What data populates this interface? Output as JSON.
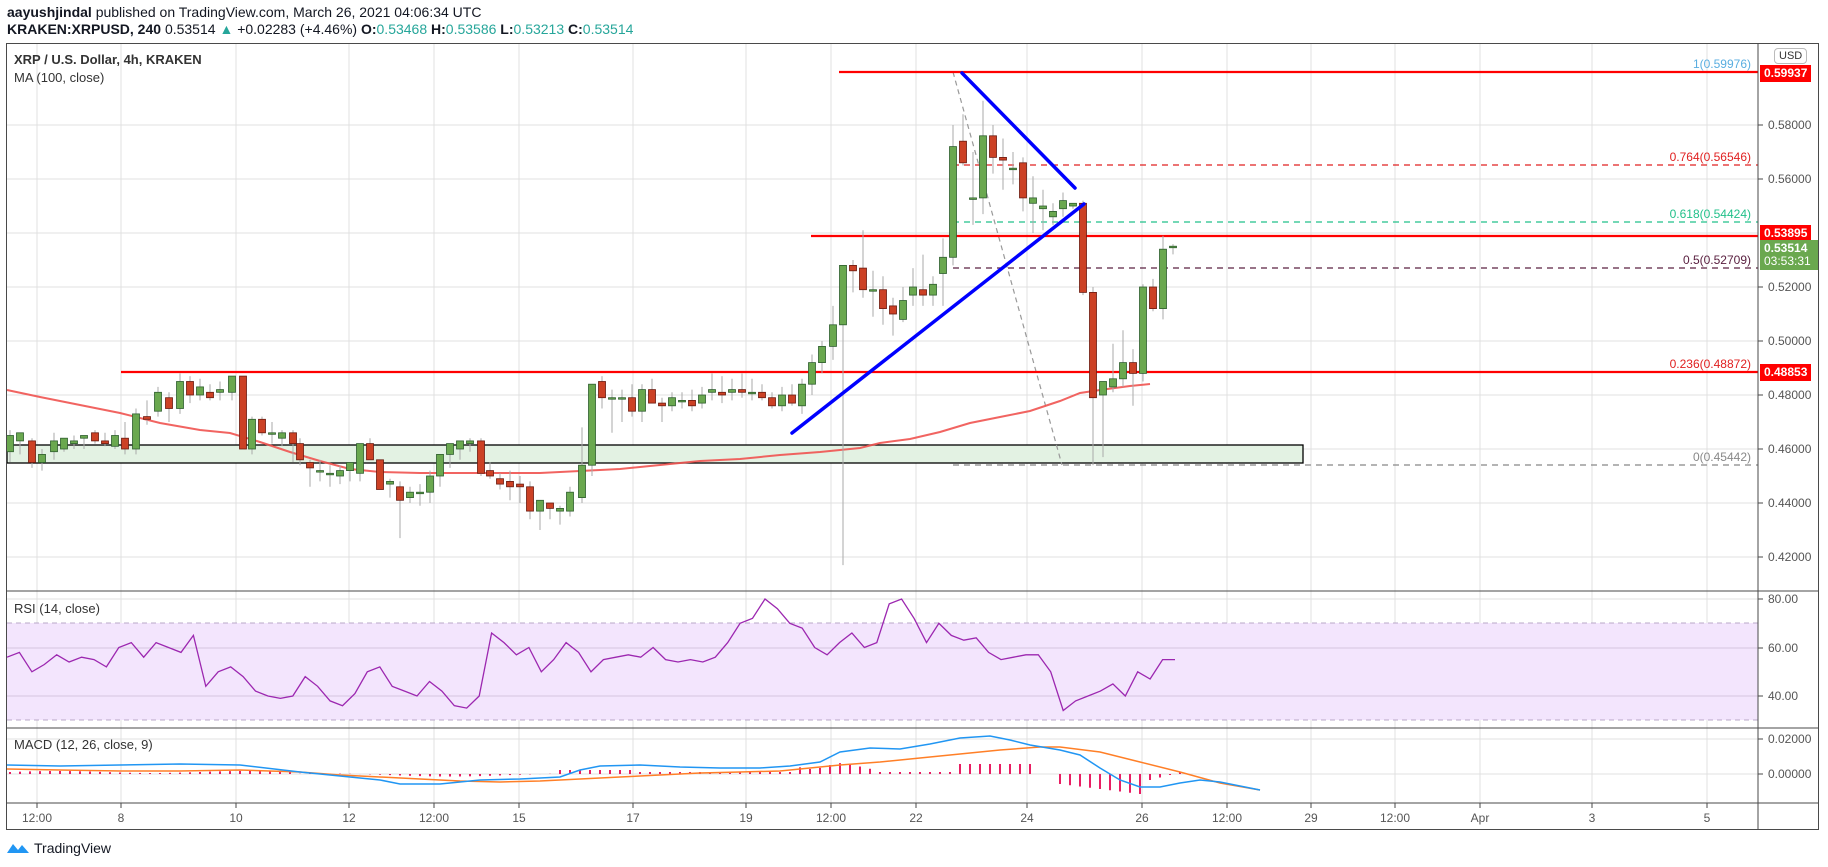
{
  "header": {
    "author": "aayushjindal",
    "published_text": "published on TradingView.com, March 26, 2021 04:06:34 UTC",
    "symbol": "KRAKEN:XRPUSD, 240",
    "last_price": "0.53514",
    "change": "+0.02283 (+4.46%)",
    "open_label": "O:",
    "open": "0.53468",
    "high_label": "H:",
    "high": "0.53586",
    "low_label": "L:",
    "low": "0.53213",
    "close_label": "C:",
    "close": "0.53514"
  },
  "main_pane": {
    "title": "XRP / U.S. Dollar, 4h, KRAKEN",
    "indicator": "MA (100, close)",
    "currency_button": "USD"
  },
  "price_tags": {
    "top_resistance": "0.59937",
    "resistance": "0.53895",
    "current_price": "0.53514",
    "countdown": "03:53:31",
    "support": "0.48853"
  },
  "fib_levels": [
    {
      "label": "1(0.59976)",
      "color": "#5aaee0"
    },
    {
      "label": "0.764(0.56546)",
      "color": "#e02020"
    },
    {
      "label": "0.618(0.54424)",
      "color": "#22c08a"
    },
    {
      "label": "0.5(0.52709)",
      "color": "#5a2040"
    },
    {
      "label": "0.236(0.48872)",
      "color": "#e02020"
    },
    {
      "label": "0(0.45442)",
      "color": "#888888"
    }
  ],
  "rsi_pane": {
    "title": "RSI (14, close)"
  },
  "macd_pane": {
    "title": "MACD (12, 26, close, 9)"
  },
  "footer": {
    "brand": "TradingView"
  },
  "colors": {
    "up_candle": "#6aa84f",
    "down_candle": "#cc4125",
    "ma_line": "#ef5350",
    "trendline": "#0000ff",
    "horizontal_level": "#ff0000",
    "rsi_line": "#9c27b0",
    "rsi_band": "#f3e5fd",
    "macd_line": "#2196f3",
    "signal_line": "#ff7f27",
    "histogram": "#e91e63",
    "support_zone": "#e3f2e3"
  },
  "chart_data": {
    "type": "candlestick",
    "title": "XRP / U.S. Dollar, 4h, KRAKEN",
    "x_tick_labels": [
      "12:00",
      "8",
      "10",
      "12",
      "12:00",
      "15",
      "17",
      "19",
      "12:00",
      "22",
      "24",
      "26",
      "12:00",
      "29",
      "12:00",
      "Apr",
      "3",
      "5"
    ],
    "price_axis": {
      "ticks": [
        "0.58000",
        "0.56000",
        "0.54000",
        "0.52000",
        "0.50000",
        "0.48000",
        "0.46000",
        "0.44000",
        "0.42000"
      ],
      "ylim": [
        0.41,
        0.61
      ]
    },
    "horizontal_levels": [
      0.59937,
      0.53895,
      0.48853
    ],
    "support_zone": [
      0.455,
      0.461
    ],
    "fibonacci": {
      "1": 0.59976,
      "0.764": 0.56546,
      "0.618": 0.54424,
      "0.5": 0.52709,
      "0.236": 0.48872,
      "0": 0.45442
    },
    "ohlc_last": {
      "open": 0.53468,
      "high": 0.53586,
      "low": 0.53213,
      "close": 0.53514
    },
    "ma_100": "smooth line descending from ~0.482 to ~0.452 around day 12-15, then rising to ~0.484 by day 26",
    "rsi": {
      "ticks": [
        "80.00",
        "60.00",
        "40.00"
      ],
      "band": [
        30,
        70
      ],
      "values": [
        56,
        58,
        50,
        53,
        57,
        54,
        56,
        55,
        52,
        60,
        62,
        56,
        62,
        60,
        58,
        65,
        44,
        50,
        52,
        48,
        42,
        40,
        39,
        40,
        48,
        44,
        38,
        36,
        41,
        50,
        52,
        44,
        42,
        40,
        46,
        42,
        36,
        35,
        40,
        66,
        62,
        57,
        60,
        50,
        55,
        62,
        58,
        50,
        55,
        56,
        57,
        56,
        60,
        55,
        54,
        55,
        54,
        56,
        62,
        70,
        72,
        80,
        76,
        70,
        68,
        60,
        57,
        62,
        66,
        60,
        62,
        78,
        80,
        72,
        62,
        70,
        65,
        63,
        64,
        58,
        55,
        56,
        57,
        57,
        50,
        34,
        38,
        40,
        42,
        45,
        40,
        50,
        47,
        55,
        55
      ]
    },
    "macd": {
      "ticks": [
        "0.02000",
        "0.00000"
      ],
      "note": "MACD and signal hover near 0 until day 21, peak ~0.022 on day 23, crossing below zero on day 25, histogram negative minimum ~-0.008, converging near 0 at last bar"
    }
  }
}
